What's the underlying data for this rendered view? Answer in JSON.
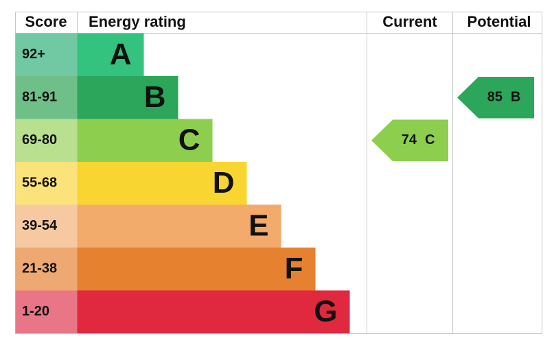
{
  "chart_data": {
    "type": "epc",
    "headers": {
      "score": "Score",
      "rating": "Energy rating",
      "current": "Current",
      "potential": "Potential"
    },
    "bands": [
      {
        "score": "92+",
        "letter": "A",
        "color": "#34c27f",
        "score_color": "#71c9a3"
      },
      {
        "score": "81-91",
        "letter": "B",
        "color": "#2ba65a",
        "score_color": "#6fc088"
      },
      {
        "score": "69-80",
        "letter": "C",
        "color": "#8dce4e",
        "score_color": "#b8e08f"
      },
      {
        "score": "55-68",
        "letter": "D",
        "color": "#f9d531",
        "score_color": "#fbe37c"
      },
      {
        "score": "39-54",
        "letter": "E",
        "color": "#f2ab6b",
        "score_color": "#f6c9a1"
      },
      {
        "score": "21-38",
        "letter": "F",
        "color": "#e6812f",
        "score_color": "#eea872"
      },
      {
        "score": "1-20",
        "letter": "G",
        "color": "#e0283e",
        "score_color": "#e97686"
      }
    ],
    "current": {
      "value": 74,
      "letter": "C"
    },
    "potential": {
      "value": 85,
      "letter": "B"
    }
  }
}
